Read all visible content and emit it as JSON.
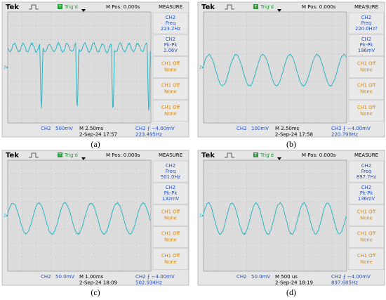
{
  "panels": [
    {
      "top": [
        "Tek",
        "Trig'd",
        "M Pos: 0.000s",
        "MEASURE"
      ],
      "measure": [
        [
          "CH2",
          "Freq",
          "223.2Hz"
        ],
        [
          "CH2",
          "Pk-Pk",
          "2.06V"
        ],
        [
          "CH1 Off",
          "None"
        ],
        [
          "CH1 Off",
          "None"
        ],
        [
          "CH1 Off",
          "None"
        ]
      ],
      "bottom": {
        "channel": "CH2",
        "scale": "500mV",
        "time": "M 2.50ms",
        "trigger": "CH2 ⨍ −4.00mV",
        "date": "2-Sep-24 17:57",
        "freq": "223.495Hz"
      },
      "caption": "(a)"
    },
    {
      "top": [
        "Tek",
        "Trig'd",
        "M Pos: 0.000s",
        "MEASURE"
      ],
      "measure": [
        [
          "CH2",
          "Freq",
          "220.0Hz?"
        ],
        [
          "CH2",
          "Pk-Pk",
          "196mV"
        ],
        [
          "CH1 Off",
          "None"
        ],
        [
          "CH1 Off",
          "None"
        ],
        [
          "CH1 Off",
          "None"
        ]
      ],
      "bottom": {
        "channel": "CH2",
        "scale": "100mV",
        "time": "M 2.50ms",
        "trigger": "CH2 ⨍ −4.00mV",
        "date": "2-Sep-24 17:58",
        "freq": "220.799Hz"
      },
      "caption": "(b)"
    },
    {
      "top": [
        "Tek",
        "Trig'd",
        "M Pos: 0.000s",
        "MEASURE"
      ],
      "measure": [
        [
          "CH2",
          "Freq",
          "501.0Hz"
        ],
        [
          "CH2",
          "Pk-Pk",
          "132mV"
        ],
        [
          "CH1 Off",
          "None"
        ],
        [
          "CH1 Off",
          "None"
        ],
        [
          "CH1 Off",
          "None"
        ]
      ],
      "bottom": {
        "channel": "CH2",
        "scale": "50.0mV",
        "time": "M 1.00ms",
        "trigger": "CH2 ⨍ −4.00mV",
        "date": "2-Sep-24 18:09",
        "freq": "502.934Hz"
      },
      "caption": "(c)"
    },
    {
      "top": [
        "Tek",
        "Trig'd",
        "M Pos: 0.000s",
        "MEASURE"
      ],
      "measure": [
        [
          "CH2",
          "Freq",
          "897.7Hz"
        ],
        [
          "CH2",
          "Pk-Pk",
          "136mV"
        ],
        [
          "CH1 Off",
          "None"
        ],
        [
          "CH1 Off",
          "None"
        ],
        [
          "CH1 Off",
          "None"
        ]
      ],
      "bottom": {
        "channel": "CH2",
        "scale": "50.0mV",
        "time": "M 500 us",
        "trigger": "CH2 ⨍ −4.00mV",
        "date": "2-Sep-24 18:19",
        "freq": "897.685Hz"
      },
      "caption": "(d)"
    }
  ]
}
